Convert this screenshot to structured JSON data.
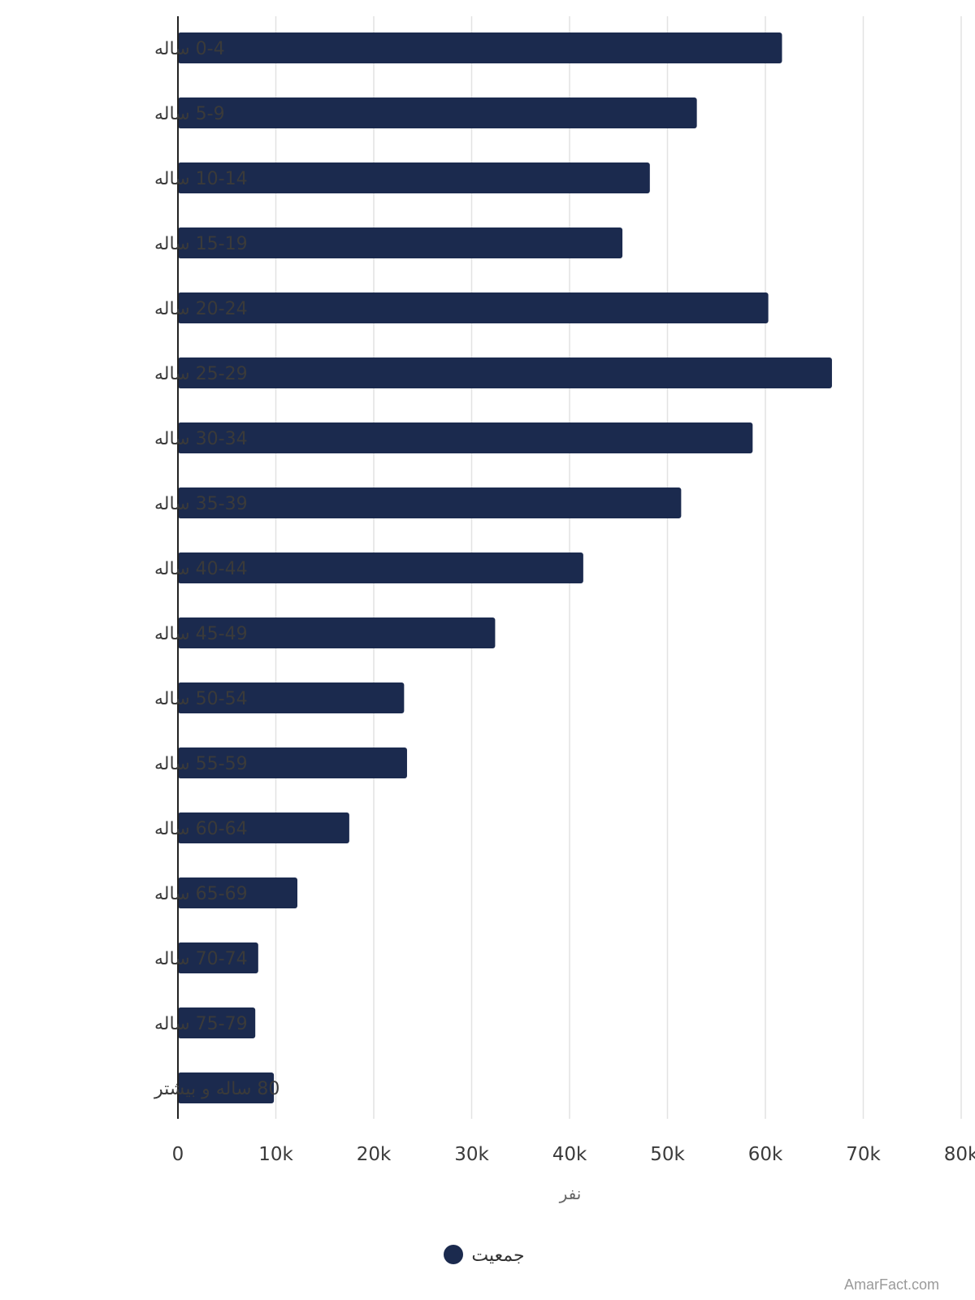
{
  "chart_data": {
    "type": "bar",
    "orientation": "horizontal",
    "categories": [
      "0-4 ساله",
      "5-9 ساله",
      "10-14 ساله",
      "15-19 ساله",
      "20-24 ساله",
      "25-29 ساله",
      "30-34 ساله",
      "35-39 ساله",
      "40-44 ساله",
      "45-49 ساله",
      "50-54 ساله",
      "55-59 ساله",
      "60-64 ساله",
      "65-69 ساله",
      "70-74 ساله",
      "75-79 ساله",
      "80 ساله و بیشتر"
    ],
    "series": [
      {
        "name": "جمعیت",
        "color": "#1b2a4e",
        "values": [
          61700,
          53000,
          48200,
          45400,
          60300,
          66800,
          58700,
          51400,
          41400,
          32400,
          23100,
          23400,
          17500,
          12200,
          8200,
          7900,
          9800
        ]
      }
    ],
    "xlim": [
      0,
      80000
    ],
    "xticks": [
      "0",
      "10k",
      "20k",
      "30k",
      "40k",
      "50k",
      "60k",
      "70k",
      "80k"
    ],
    "xtick_values": [
      0,
      10000,
      20000,
      30000,
      40000,
      50000,
      60000,
      70000,
      80000
    ],
    "xlabel": "نفر",
    "ylabel": "",
    "title": "",
    "grid": "vertical",
    "legend_position": "bottom"
  },
  "watermark": "AmarFact.com"
}
